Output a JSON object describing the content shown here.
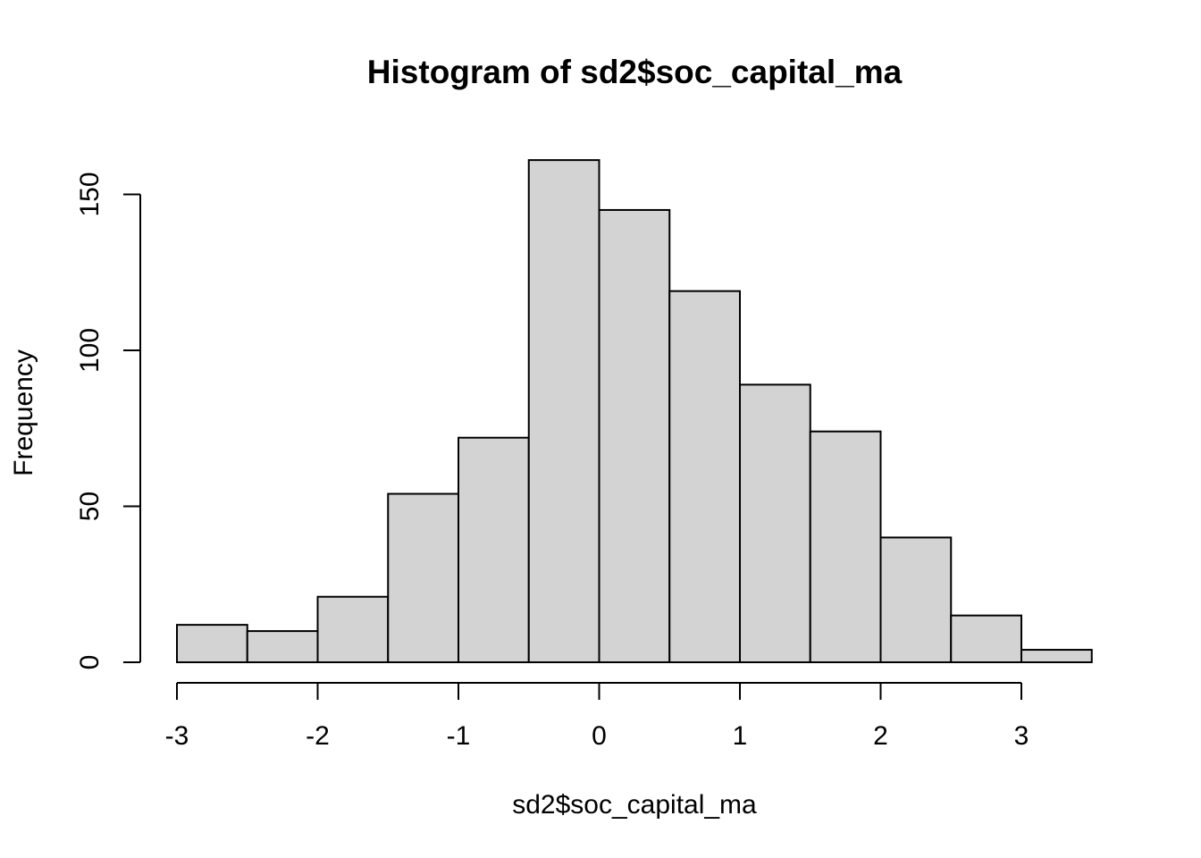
{
  "chart_data": {
    "type": "bar",
    "title": "Histogram of sd2$soc_capital_ma",
    "xlabel": "sd2$soc_capital_ma",
    "ylabel": "Frequency",
    "bin_width": 0.5,
    "bins": [
      {
        "start": -3.0,
        "end": -2.5,
        "count": 12
      },
      {
        "start": -2.5,
        "end": -2.0,
        "count": 10
      },
      {
        "start": -2.0,
        "end": -1.5,
        "count": 21
      },
      {
        "start": -1.5,
        "end": -1.0,
        "count": 54
      },
      {
        "start": -1.0,
        "end": -0.5,
        "count": 72
      },
      {
        "start": -0.5,
        "end": 0.0,
        "count": 161
      },
      {
        "start": 0.0,
        "end": 0.5,
        "count": 145
      },
      {
        "start": 0.5,
        "end": 1.0,
        "count": 119
      },
      {
        "start": 1.0,
        "end": 1.5,
        "count": 89
      },
      {
        "start": 1.5,
        "end": 2.0,
        "count": 74
      },
      {
        "start": 2.0,
        "end": 2.5,
        "count": 40
      },
      {
        "start": 2.5,
        "end": 3.0,
        "count": 15
      },
      {
        "start": 3.0,
        "end": 3.5,
        "count": 4
      }
    ],
    "x_ticks": [
      "-3",
      "-2",
      "-1",
      "0",
      "1",
      "2",
      "3"
    ],
    "y_ticks": [
      "0",
      "50",
      "100",
      "150"
    ],
    "x_tick_values": [
      -3,
      -2,
      -1,
      0,
      1,
      2,
      3
    ],
    "y_tick_values": [
      0,
      50,
      100,
      150
    ],
    "xlim": [
      -3.0,
      3.5
    ],
    "ylim": [
      0,
      161
    ],
    "grid": false,
    "legend": "none",
    "bar_fill": "#d3d3d3",
    "bar_stroke": "#000000"
  }
}
